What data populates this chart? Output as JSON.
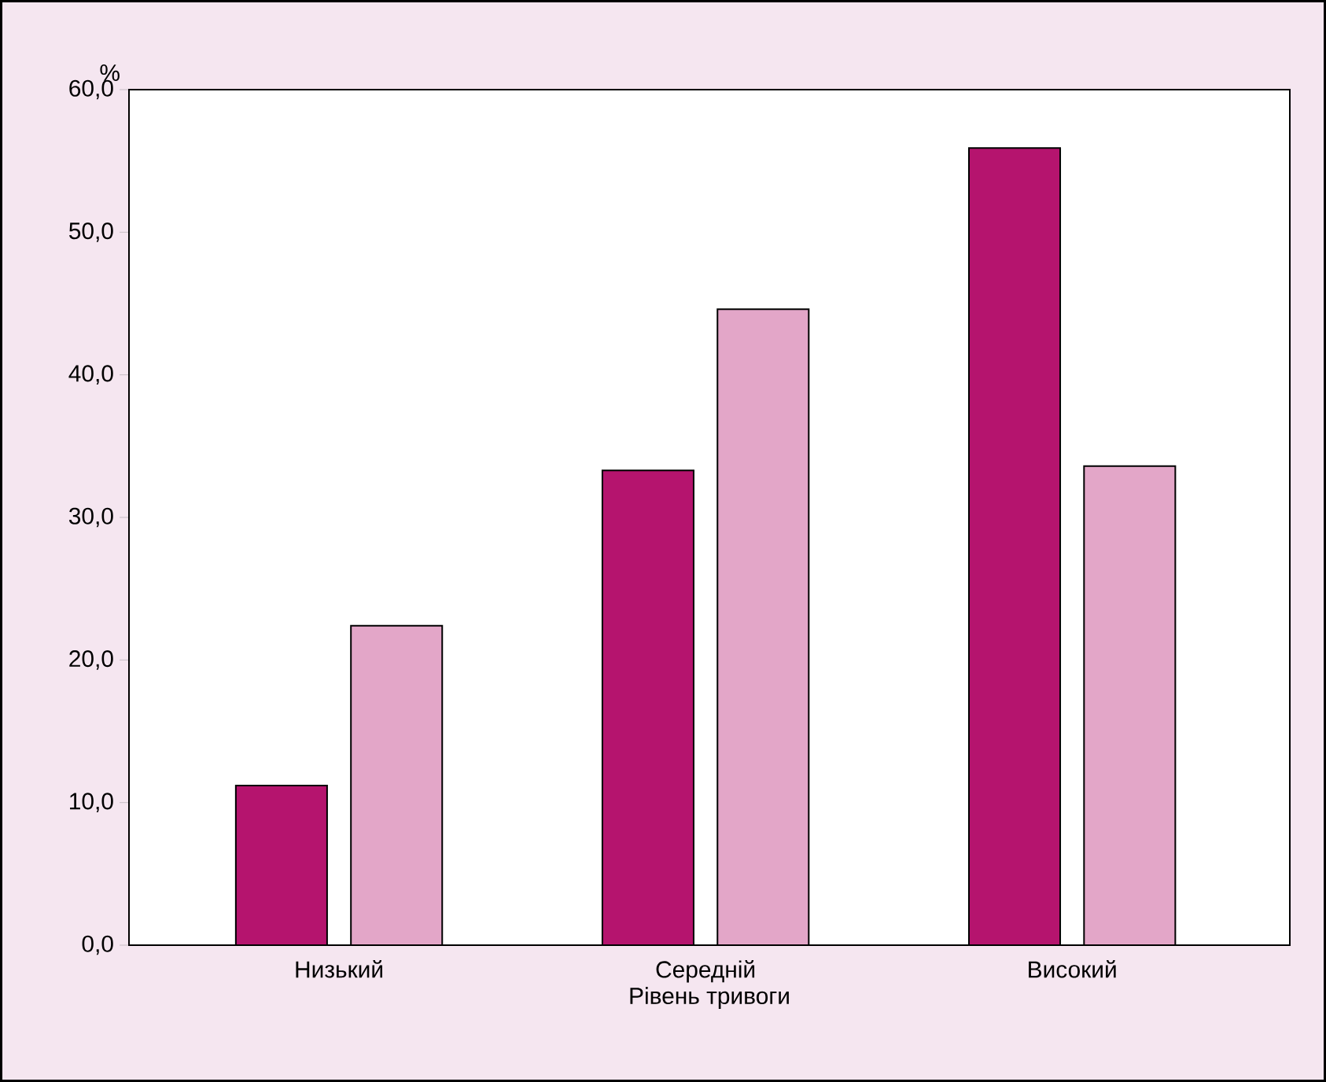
{
  "chart_data": {
    "type": "bar",
    "xlabel": "Рівень тривоги",
    "ylabel": "%",
    "categories": [
      "Низький",
      "Середній",
      "Високий"
    ],
    "series": [
      {
        "color": "#b5146e",
        "values": [
          11.2,
          33.3,
          55.9
        ]
      },
      {
        "color": "#e3a6c8",
        "values": [
          22.4,
          44.6,
          33.6
        ]
      }
    ],
    "ylim": [
      0,
      60
    ],
    "yticks": [
      {
        "value": 0,
        "label": "0,0"
      },
      {
        "value": 10,
        "label": "10,0"
      },
      {
        "value": 20,
        "label": "20,0"
      },
      {
        "value": 30,
        "label": "30,0"
      },
      {
        "value": 40,
        "label": "40,0"
      },
      {
        "value": 50,
        "label": "50,0"
      },
      {
        "value": 60,
        "label": "60,0"
      }
    ]
  }
}
